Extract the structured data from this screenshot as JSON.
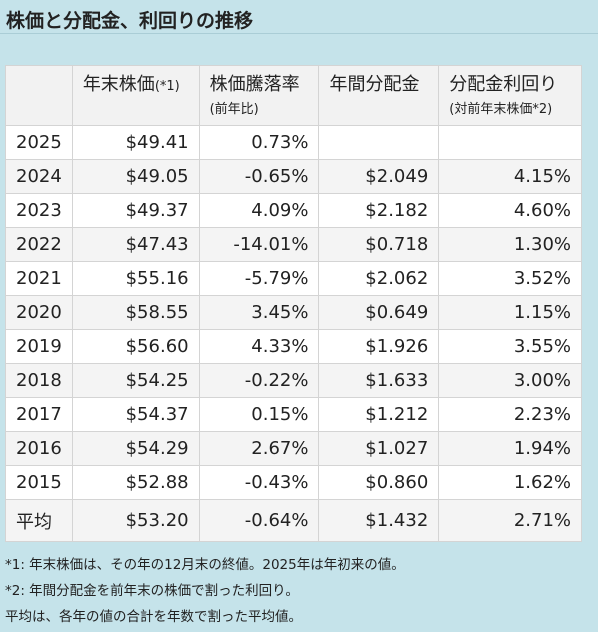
{
  "title": "株価と分配金、利回りの推移",
  "table": {
    "headers": {
      "year": "",
      "price": "年末株価",
      "price_suffix": "(*1)",
      "change": "株価騰落率",
      "change_sub": "(前年比)",
      "dividend": "年間分配金",
      "yield": "分配金利回り",
      "yield_sub": "(対前年末株価*2)"
    },
    "rows": [
      {
        "year": "2025",
        "price": "$49.41",
        "change": "0.73%",
        "dividend": "",
        "yield": ""
      },
      {
        "year": "2024",
        "price": "$49.05",
        "change": "-0.65%",
        "dividend": "$2.049",
        "yield": "4.15%"
      },
      {
        "year": "2023",
        "price": "$49.37",
        "change": "4.09%",
        "dividend": "$2.182",
        "yield": "4.60%"
      },
      {
        "year": "2022",
        "price": "$47.43",
        "change": "-14.01%",
        "dividend": "$0.718",
        "yield": "1.30%"
      },
      {
        "year": "2021",
        "price": "$55.16",
        "change": "-5.79%",
        "dividend": "$2.062",
        "yield": "3.52%"
      },
      {
        "year": "2020",
        "price": "$58.55",
        "change": "3.45%",
        "dividend": "$0.649",
        "yield": "1.15%"
      },
      {
        "year": "2019",
        "price": "$56.60",
        "change": "4.33%",
        "dividend": "$1.926",
        "yield": "3.55%"
      },
      {
        "year": "2018",
        "price": "$54.25",
        "change": "-0.22%",
        "dividend": "$1.633",
        "yield": "3.00%"
      },
      {
        "year": "2017",
        "price": "$54.37",
        "change": "0.15%",
        "dividend": "$1.212",
        "yield": "2.23%"
      },
      {
        "year": "2016",
        "price": "$54.29",
        "change": "2.67%",
        "dividend": "$1.027",
        "yield": "1.94%"
      },
      {
        "year": "2015",
        "price": "$52.88",
        "change": "-0.43%",
        "dividend": "$0.860",
        "yield": "1.62%"
      }
    ],
    "average": {
      "year": "平均",
      "price": "$53.20",
      "change": "-0.64%",
      "dividend": "$1.432",
      "yield": "2.71%"
    }
  },
  "notes": [
    "*1: 年末株価は、その年の12月末の終値。2025年は年初来の値。",
    "*2: 年間分配金を前年末の株価で割った利回り。",
    "平均は、各年の値の合計を年数で割った平均値。"
  ]
}
